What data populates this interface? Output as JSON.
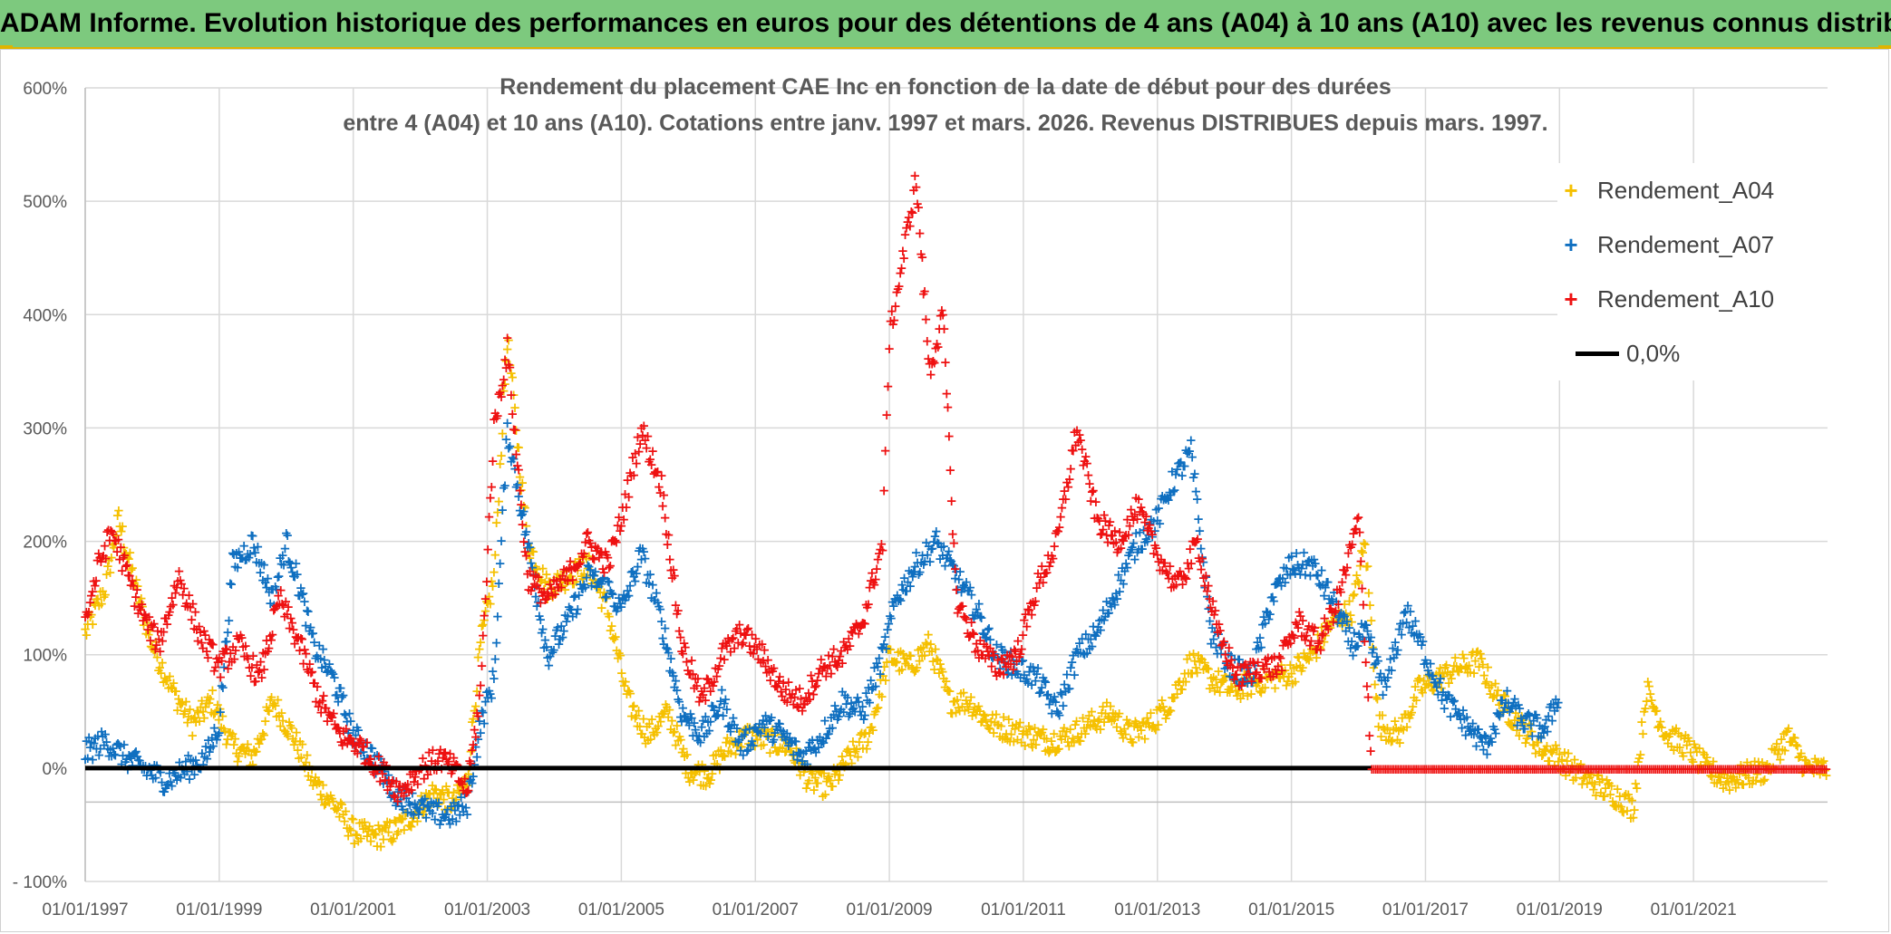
{
  "header": {
    "banner": "ADAM Informe. Evolution historique des performances en euros pour des détentions de 4 ans (A04) à 10 ans (A10) avec les revenus connus distribués"
  },
  "colors": {
    "A04": "#f5c000",
    "A07": "#0f6fc0",
    "A10": "#ee1111",
    "zero": "#000000",
    "banner": "#7dc97e"
  },
  "chart_data": {
    "type": "scatter",
    "title": "Rendement du placement CAE Inc en fonction de la date de début pour des durées",
    "subtitle": "entre 4 (A04) et 10 ans (A10). Cotations entre janv. 1997 et mars. 2026. Revenus DISTRIBUES depuis mars. 1997.",
    "xlabel": "",
    "ylabel": "",
    "ylim": [
      -100,
      600
    ],
    "xlim": [
      1997.0,
      2023.0
    ],
    "grid": true,
    "legend_position": "top-right",
    "y_ticks": [
      {
        "value": -100,
        "label": "- 100%"
      },
      {
        "value": 0,
        "label": "0%"
      },
      {
        "value": 100,
        "label": "100%"
      },
      {
        "value": 200,
        "label": "200%"
      },
      {
        "value": 300,
        "label": "300%"
      },
      {
        "value": 400,
        "label": "400%"
      },
      {
        "value": 500,
        "label": "500%"
      },
      {
        "value": 600,
        "label": "600%"
      }
    ],
    "x_ticks": [
      {
        "value": 1997,
        "label": "01/01/1997"
      },
      {
        "value": 1999,
        "label": "01/01/1999"
      },
      {
        "value": 2001,
        "label": "01/01/2001"
      },
      {
        "value": 2003,
        "label": "01/01/2003"
      },
      {
        "value": 2005,
        "label": "01/01/2005"
      },
      {
        "value": 2007,
        "label": "01/01/2007"
      },
      {
        "value": 2009,
        "label": "01/01/2009"
      },
      {
        "value": 2011,
        "label": "01/01/2011"
      },
      {
        "value": 2013,
        "label": "01/01/2013"
      },
      {
        "value": 2015,
        "label": "01/01/2015"
      },
      {
        "value": 2017,
        "label": "01/01/2017"
      },
      {
        "value": 2019,
        "label": "01/01/2019"
      },
      {
        "value": 2021,
        "label": "01/01/2021"
      }
    ],
    "series": [
      {
        "name": "Rendement_A04",
        "key": "A04",
        "x": [
          1997.0,
          1997.3,
          1997.5,
          1997.8,
          1998.0,
          1998.3,
          1998.6,
          1998.9,
          1999.2,
          1999.5,
          1999.8,
          2000.1,
          2000.4,
          2000.7,
          2001.0,
          2001.3,
          2001.6,
          2001.9,
          2002.2,
          2002.5,
          2002.7,
          2002.9,
          2003.1,
          2003.3,
          2003.6,
          2003.9,
          2004.2,
          2004.5,
          2004.8,
          2005.1,
          2005.4,
          2005.7,
          2006.0,
          2006.3,
          2006.6,
          2006.9,
          2007.2,
          2007.5,
          2007.8,
          2008.1,
          2008.4,
          2008.7,
          2009.0,
          2009.3,
          2009.6,
          2009.9,
          2010.2,
          2010.5,
          2010.8,
          2011.1,
          2011.4,
          2011.7,
          2012.0,
          2012.3,
          2012.6,
          2012.9,
          2013.2,
          2013.5,
          2013.8,
          2014.1,
          2014.4,
          2014.7,
          2015.0,
          2015.3,
          2015.6,
          2015.9,
          2016.1,
          2016.3,
          2016.6,
          2016.9,
          2017.2,
          2017.5,
          2017.8,
          2018.1,
          2018.4,
          2018.7,
          2019.0,
          2019.3,
          2019.6,
          2019.9,
          2020.1,
          2020.3,
          2020.6,
          2020.9,
          2021.2,
          2021.5,
          2021.8,
          2022.1,
          2022.4,
          2022.7,
          2023.0
        ],
        "y": [
          120,
          160,
          220,
          150,
          110,
          70,
          40,
          60,
          20,
          10,
          60,
          30,
          -10,
          -30,
          -55,
          -60,
          -55,
          -40,
          -20,
          -30,
          -10,
          110,
          170,
          380,
          200,
          160,
          170,
          180,
          140,
          60,
          30,
          50,
          0,
          -5,
          20,
          30,
          25,
          20,
          -10,
          -15,
          10,
          30,
          100,
          90,
          110,
          60,
          60,
          40,
          35,
          30,
          25,
          30,
          40,
          50,
          30,
          40,
          60,
          95,
          80,
          70,
          75,
          80,
          85,
          100,
          130,
          140,
          200,
          40,
          30,
          70,
          80,
          90,
          95,
          60,
          40,
          20,
          10,
          -5,
          -15,
          -25,
          -35,
          70,
          30,
          20,
          0,
          -10,
          -5,
          0,
          30,
          0,
          0
        ]
      },
      {
        "name": "Rendement_A07",
        "key": "A07",
        "x": [
          1997.0,
          1997.3,
          1997.6,
          1997.9,
          1998.2,
          1998.5,
          1998.8,
          1999.0,
          1999.2,
          1999.5,
          1999.8,
          2000.0,
          2000.2,
          2000.4,
          2000.7,
          2001.0,
          2001.3,
          2001.6,
          2001.9,
          2002.2,
          2002.5,
          2002.7,
          2002.9,
          2003.1,
          2003.3,
          2003.6,
          2003.9,
          2004.2,
          2004.5,
          2004.8,
          2005.0,
          2005.3,
          2005.6,
          2005.9,
          2006.2,
          2006.5,
          2006.8,
          2007.1,
          2007.4,
          2007.7,
          2008.0,
          2008.3,
          2008.6,
          2008.9,
          2009.1,
          2009.4,
          2009.7,
          2010.0,
          2010.3,
          2010.6,
          2010.9,
          2011.2,
          2011.5,
          2011.8,
          2012.1,
          2012.4,
          2012.7,
          2013.0,
          2013.2,
          2013.5,
          2013.8,
          2014.1,
          2014.4,
          2014.7,
          2015.0,
          2015.3,
          2015.6,
          2015.9,
          2016.1,
          2016.4,
          2016.7,
          2017.0,
          2017.3,
          2017.6,
          2017.9,
          2018.2,
          2018.5,
          2018.8,
          2019.0
        ],
        "y": [
          15,
          25,
          10,
          0,
          -10,
          0,
          10,
          40,
          180,
          200,
          150,
          200,
          160,
          110,
          80,
          30,
          10,
          -20,
          -30,
          -40,
          -40,
          -30,
          40,
          80,
          300,
          200,
          100,
          130,
          170,
          160,
          140,
          190,
          130,
          50,
          30,
          60,
          20,
          40,
          30,
          10,
          30,
          60,
          50,
          100,
          150,
          180,
          200,
          170,
          140,
          100,
          90,
          80,
          50,
          100,
          120,
          160,
          200,
          220,
          250,
          280,
          120,
          90,
          80,
          150,
          180,
          180,
          150,
          110,
          120,
          70,
          140,
          100,
          60,
          40,
          20,
          60,
          40,
          35,
          70
        ]
      },
      {
        "name": "Rendement_A10",
        "key": "A10",
        "x": [
          1997.0,
          1997.2,
          1997.4,
          1997.7,
          1997.9,
          1998.1,
          1998.4,
          1998.7,
          1999.0,
          1999.3,
          1999.6,
          1999.9,
          2000.2,
          2000.5,
          2000.8,
          2001.1,
          2001.4,
          2001.7,
          2002.0,
          2002.3,
          2002.5,
          2002.7,
          2002.9,
          2003.1,
          2003.3,
          2003.6,
          2003.9,
          2004.2,
          2004.5,
          2004.8,
          2005.0,
          2005.3,
          2005.6,
          2005.9,
          2006.2,
          2006.5,
          2006.8,
          2007.1,
          2007.4,
          2007.7,
          2008.0,
          2008.3,
          2008.6,
          2008.9,
          2009.0,
          2009.2,
          2009.4,
          2009.6,
          2009.8,
          2010.0,
          2010.3,
          2010.6,
          2010.9,
          2011.2,
          2011.5,
          2011.8,
          2012.1,
          2012.4,
          2012.7,
          2013.0,
          2013.3,
          2013.6,
          2013.9,
          2014.2,
          2014.5,
          2014.8,
          2015.1,
          2015.4,
          2015.7,
          2016.0,
          2016.2
        ],
        "y": [
          130,
          180,
          210,
          160,
          130,
          110,
          170,
          120,
          90,
          110,
          80,
          150,
          110,
          60,
          30,
          20,
          0,
          -20,
          0,
          10,
          0,
          -20,
          70,
          300,
          370,
          170,
          150,
          170,
          200,
          180,
          220,
          300,
          250,
          110,
          60,
          100,
          120,
          100,
          70,
          60,
          90,
          100,
          130,
          200,
          380,
          450,
          520,
          350,
          400,
          150,
          110,
          90,
          100,
          160,
          200,
          300,
          220,
          200,
          230,
          190,
          160,
          200,
          120,
          80,
          90,
          90,
          130,
          110,
          150,
          220,
          0
        ]
      }
    ]
  },
  "legend": {
    "A04_label": "Rendement_A04",
    "A07_label": "Rendement_A07",
    "A10_label": "Rendement_A10",
    "zero_label": "0,0%"
  },
  "zero_line": {
    "value": 0,
    "label": "0,0%",
    "x_end": 2016.2
  },
  "a10_zero_segment": {
    "x_start": 2016.2,
    "x_end": 2023.0,
    "value": 0
  }
}
